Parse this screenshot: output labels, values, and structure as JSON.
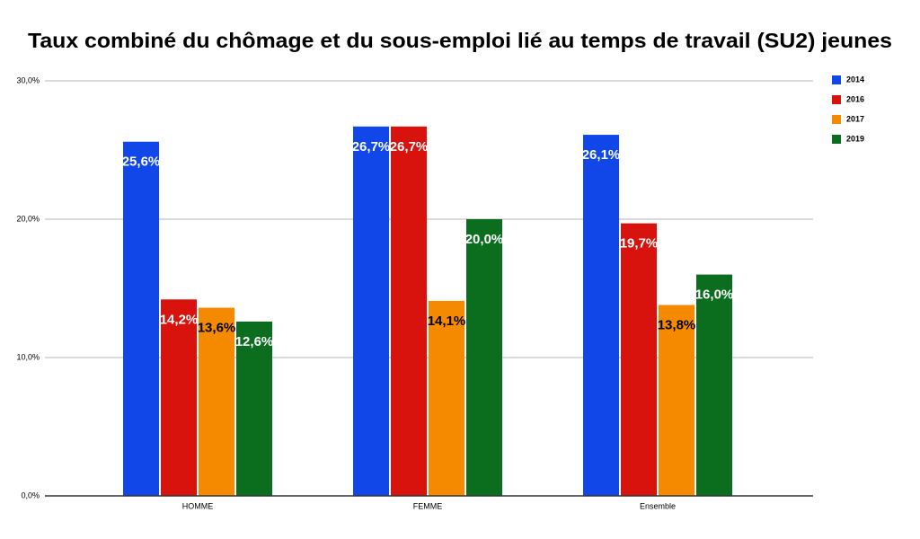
{
  "chart_data": {
    "type": "bar",
    "title": "Taux combiné du chômage et du sous-emploi lié au temps de travail (SU2) jeunes",
    "categories": [
      "HOMME",
      "FEMME",
      "Ensemble"
    ],
    "series": [
      {
        "name": "2014",
        "color": "#1146e8",
        "label_color": "#ffffff",
        "values": [
          25.6,
          26.7,
          26.1
        ],
        "value_labels": [
          "25,6%",
          "26,7%",
          "26,1%"
        ]
      },
      {
        "name": "2016",
        "color": "#d8120c",
        "label_color": "#ffffff",
        "values": [
          14.2,
          26.7,
          19.7
        ],
        "value_labels": [
          "14,2%",
          "26,7%",
          "19,7%"
        ]
      },
      {
        "name": "2017",
        "color": "#f58a00",
        "label_color": "#000000",
        "values": [
          13.6,
          14.1,
          13.8
        ],
        "value_labels": [
          "13,6%",
          "14,1%",
          "13,8%"
        ]
      },
      {
        "name": "2019",
        "color": "#0b6e1e",
        "label_color": "#ffffff",
        "values": [
          12.6,
          20.0,
          16.0
        ],
        "value_labels": [
          "12,6%",
          "20,0%",
          "16,0%"
        ]
      }
    ],
    "ylim": [
      0,
      30
    ],
    "yticks": [
      {
        "value": 0,
        "label": "0,0%"
      },
      {
        "value": 10,
        "label": "10,0%"
      },
      {
        "value": 20,
        "label": "20,0%"
      },
      {
        "value": 30,
        "label": "30,0%"
      }
    ],
    "grid": true,
    "legend": "right"
  }
}
